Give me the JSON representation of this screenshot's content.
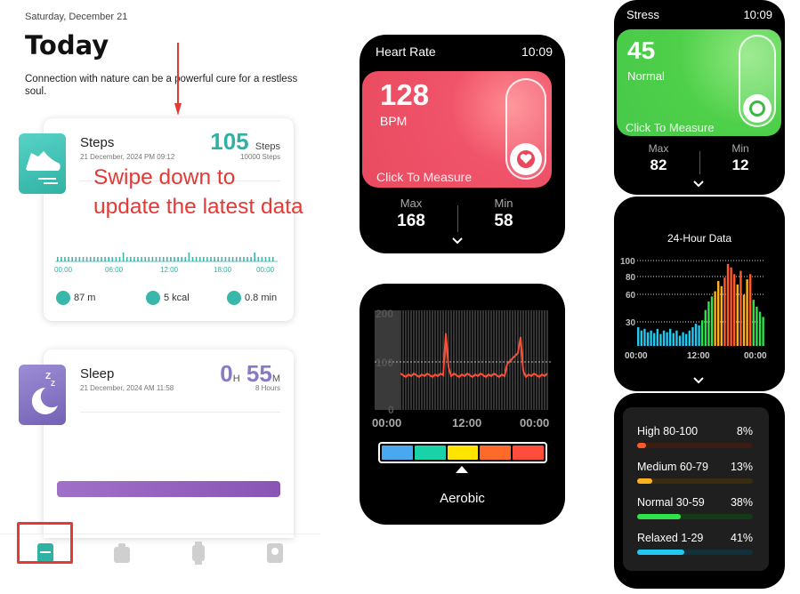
{
  "phone": {
    "date": "Saturday, December 21",
    "title": "Today",
    "quote": "Connection with nature can be a powerful cure for a restless soul.",
    "overlay": "Swipe down to update the latest data",
    "steps_card": {
      "title": "Steps",
      "timestamp": "21 December, 2024 PM 09:12",
      "value": "105",
      "unit": "Steps",
      "goal": "10000 Steps",
      "axis": [
        "00:00",
        "06:00",
        "12:00",
        "18:00",
        "00:00"
      ],
      "stats": [
        {
          "icon": "location-icon",
          "value": "87 m"
        },
        {
          "icon": "flame-icon",
          "value": "5 kcal"
        },
        {
          "icon": "clock-icon",
          "value": "0.8 min"
        }
      ]
    },
    "sleep_card": {
      "title": "Sleep",
      "timestamp": "21 December, 2024 AM 11:58",
      "hours": "0",
      "hours_unit": "H",
      "minutes": "55",
      "minutes_unit": "M",
      "goal": "8 Hours"
    },
    "tabs": [
      {
        "icon": "home-card-icon",
        "selected": true
      },
      {
        "icon": "activity-icon",
        "selected": false
      },
      {
        "icon": "watch-icon",
        "selected": false
      },
      {
        "icon": "profile-icon",
        "selected": false
      }
    ]
  },
  "heart_rate": {
    "title": "Heart Rate",
    "time": "10:09",
    "value": "128",
    "unit": "BPM",
    "action": "Click To Measure",
    "max_label": "Max",
    "max": "168",
    "min_label": "Min",
    "min": "58",
    "accent": "#ec4a61"
  },
  "hr_chart": {
    "y_ticks": [
      "200",
      "100",
      "0"
    ],
    "x_ticks": [
      "00:00",
      "12:00",
      "00:00"
    ],
    "zone_label": "Aerobic",
    "zone_colors": [
      "#4aa8f0",
      "#19d2a8",
      "#ffe400",
      "#ff6a2a",
      "#ff4c3b"
    ]
  },
  "stress": {
    "title": "Stress",
    "time": "10:09",
    "value": "45",
    "unit": "Normal",
    "action": "Click To Measure",
    "max_label": "Max",
    "max": "82",
    "min_label": "Min",
    "min": "12",
    "accent": "#4ccd4a"
  },
  "stress_24h": {
    "title": "24-Hour Data",
    "y_ticks": [
      "100",
      "80",
      "60",
      "30"
    ],
    "x_ticks": [
      "00:00",
      "12:00",
      "00:00"
    ]
  },
  "stress_distribution": [
    {
      "label": "High 80-100",
      "pct": "8%",
      "fraction": 0.08,
      "color": "#ff5a2a"
    },
    {
      "label": "Medium 60-79",
      "pct": "13%",
      "fraction": 0.13,
      "color": "#ffb21e"
    },
    {
      "label": "Normal 30-59",
      "pct": "38%",
      "fraction": 0.38,
      "color": "#2ee24a"
    },
    {
      "label": "Relaxed 1-29",
      "pct": "41%",
      "fraction": 0.41,
      "color": "#21c8f0"
    }
  ]
}
